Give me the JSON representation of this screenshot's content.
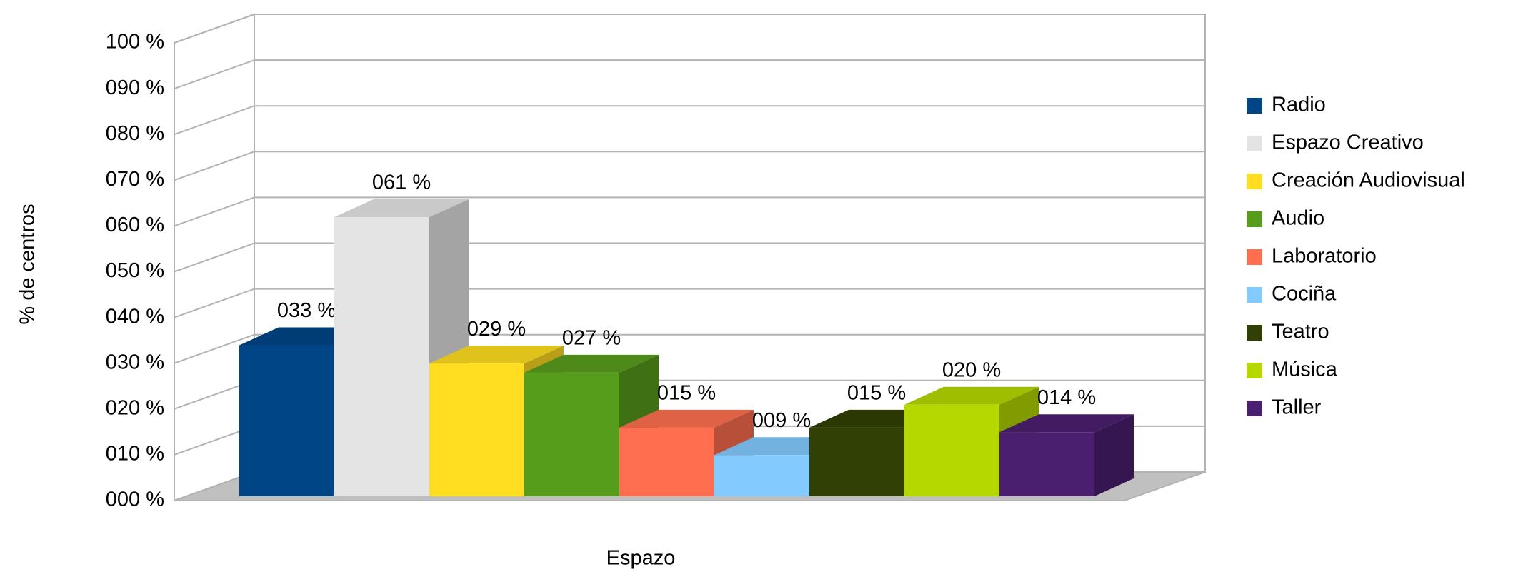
{
  "chart_data": {
    "type": "bar",
    "xlabel": "Espazo",
    "ylabel": "% de centros",
    "ylim": [
      0,
      100
    ],
    "yticks": [
      {
        "value": 0,
        "label": "000 %"
      },
      {
        "value": 10,
        "label": "010 %"
      },
      {
        "value": 20,
        "label": "020 %"
      },
      {
        "value": 30,
        "label": "030 %"
      },
      {
        "value": 40,
        "label": "040 %"
      },
      {
        "value": 50,
        "label": "050 %"
      },
      {
        "value": 60,
        "label": "060 %"
      },
      {
        "value": 70,
        "label": "070 %"
      },
      {
        "value": 80,
        "label": "080 %"
      },
      {
        "value": 90,
        "label": "090 %"
      },
      {
        "value": 100,
        "label": "100 %"
      }
    ],
    "grid": true,
    "legend": "right",
    "series": [
      {
        "name": "Radio",
        "color": "#004586",
        "values": [
          33
        ],
        "value_labels": [
          "033 %"
        ]
      },
      {
        "name": "Espazo Creativo",
        "color": "#e4e4e4",
        "values": [
          61
        ],
        "value_labels": [
          "061 %"
        ]
      },
      {
        "name": "Creación Audiovisual",
        "color": "#ffdd20",
        "values": [
          29
        ],
        "value_labels": [
          "029 %"
        ]
      },
      {
        "name": "Audio",
        "color": "#579d1c",
        "values": [
          27
        ],
        "value_labels": [
          "027 %"
        ]
      },
      {
        "name": "Laboratorio",
        "color": "#ff6f4f",
        "values": [
          15
        ],
        "value_labels": [
          "015 %"
        ]
      },
      {
        "name": "Cociña",
        "color": "#83caff",
        "values": [
          9
        ],
        "value_labels": [
          "009 %"
        ]
      },
      {
        "name": "Teatro",
        "color": "#314004",
        "values": [
          15
        ],
        "value_labels": [
          "015 %"
        ]
      },
      {
        "name": "Música",
        "color": "#b5d800",
        "values": [
          20
        ],
        "value_labels": [
          "020 %"
        ]
      },
      {
        "name": "Taller",
        "color": "#4b1f6f",
        "values": [
          14
        ],
        "value_labels": [
          "014 %"
        ]
      }
    ]
  }
}
